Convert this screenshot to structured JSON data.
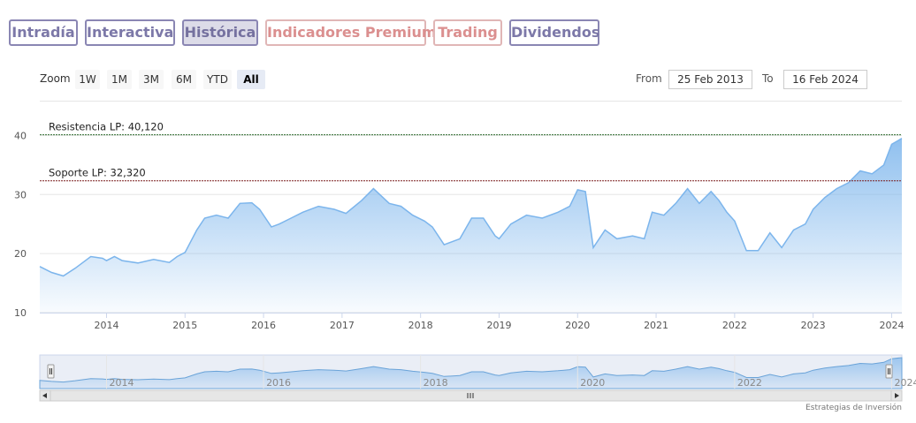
{
  "tabs": [
    {
      "label": "Intradía",
      "state": "normal"
    },
    {
      "label": "Interactiva",
      "state": "normal"
    },
    {
      "label": "Histórica",
      "state": "active"
    },
    {
      "label": "Indicadores Premium",
      "state": "premium"
    },
    {
      "label": "Trading",
      "state": "premium"
    },
    {
      "label": "Dividendos",
      "state": "normal"
    }
  ],
  "range_selector": {
    "zoom_label": "Zoom",
    "buttons": [
      "1W",
      "1M",
      "3M",
      "6M",
      "YTD",
      "All"
    ],
    "selected": "All",
    "from_label": "From",
    "from_value": "25 Feb 2013",
    "to_label": "To",
    "to_value": "16 Feb 2024"
  },
  "credit": "Estrategias de Inversión",
  "colors": {
    "tab_border": "#8a86b3",
    "premium": "#db8f8f",
    "series_line": "#7cb5ec",
    "support_line": "#7a1f1f",
    "resistance_line": "#2e6b2e"
  },
  "chart_data": {
    "type": "area",
    "title": "",
    "xlabel": "",
    "ylabel": "",
    "xlim": [
      2013.15,
      2024.13
    ],
    "ylim": [
      10,
      42
    ],
    "yticks": [
      10,
      20,
      30,
      40
    ],
    "xticks": [
      2014,
      2015,
      2016,
      2017,
      2018,
      2019,
      2020,
      2021,
      2022,
      2023,
      2024
    ],
    "grid": true,
    "legend": "none",
    "plot_lines": [
      {
        "label": "Resistencia LP: 40,120",
        "value": 40.12,
        "color": "#2e6b2e"
      },
      {
        "label": "Soporte LP: 32,320",
        "value": 32.32,
        "color": "#7a1f1f"
      }
    ],
    "series": [
      {
        "x": [
          2013.15,
          2013.3,
          2013.45,
          2013.6,
          2013.8,
          2013.95,
          2014.0,
          2014.1,
          2014.2,
          2014.4,
          2014.6,
          2014.8,
          2014.9,
          2015.0,
          2015.15,
          2015.25,
          2015.4,
          2015.55,
          2015.7,
          2015.85,
          2015.95,
          2016.1,
          2016.2,
          2016.35,
          2016.5,
          2016.7,
          2016.9,
          2017.05,
          2017.25,
          2017.4,
          2017.6,
          2017.75,
          2017.9,
          2018.05,
          2018.15,
          2018.3,
          2018.5,
          2018.65,
          2018.8,
          2018.95,
          2019.0,
          2019.15,
          2019.35,
          2019.55,
          2019.75,
          2019.9,
          2020.0,
          2020.1,
          2020.2,
          2020.35,
          2020.5,
          2020.7,
          2020.85,
          2020.95,
          2021.1,
          2021.25,
          2021.4,
          2021.55,
          2021.7,
          2021.8,
          2021.9,
          2022.0,
          2022.15,
          2022.3,
          2022.45,
          2022.6,
          2022.75,
          2022.9,
          2023.0,
          2023.15,
          2023.3,
          2023.45,
          2023.6,
          2023.75,
          2023.9,
          2024.0,
          2024.13
        ],
        "y": [
          17.8,
          16.8,
          16.2,
          17.5,
          19.5,
          19.2,
          18.8,
          19.5,
          18.8,
          18.4,
          19.0,
          18.5,
          19.5,
          20.2,
          24.0,
          26.0,
          26.5,
          26.0,
          28.5,
          28.6,
          27.5,
          24.5,
          25.0,
          26.0,
          27.0,
          28.0,
          27.5,
          26.8,
          29.0,
          31.0,
          28.5,
          28.0,
          26.5,
          25.5,
          24.5,
          21.5,
          22.5,
          26.0,
          26.0,
          23.0,
          22.5,
          25.0,
          26.5,
          26.0,
          27.0,
          28.0,
          30.8,
          30.5,
          21.0,
          24.0,
          22.5,
          23.0,
          22.5,
          27.0,
          26.5,
          28.5,
          31.0,
          28.5,
          30.5,
          29.0,
          27.0,
          25.5,
          20.5,
          20.5,
          23.5,
          21.0,
          24.0,
          25.0,
          27.5,
          29.5,
          31.0,
          32.0,
          34.0,
          33.5,
          35.0,
          38.5,
          39.5
        ]
      }
    ]
  }
}
